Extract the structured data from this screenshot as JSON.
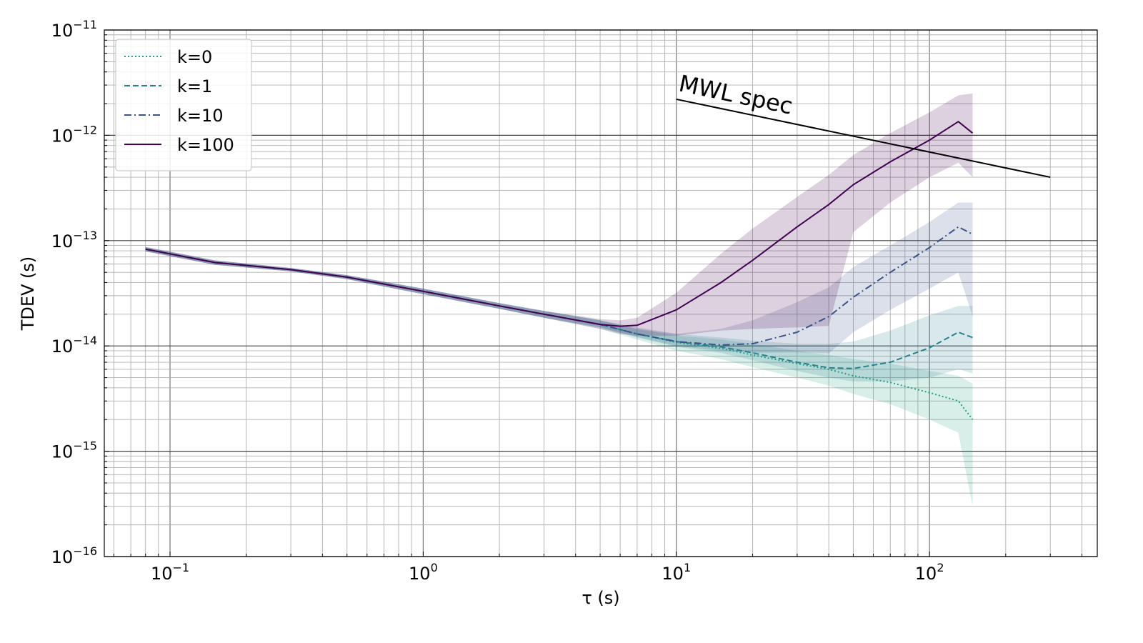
{
  "chart_data": {
    "type": "line",
    "title": "",
    "xlabel": "τ (s)",
    "ylabel": "TDEV (s)",
    "xscale": "log",
    "yscale": "log",
    "xlim": [
      0.055,
      460
    ],
    "ylim": [
      1e-16,
      1e-11
    ],
    "grid": "major and minor",
    "legend_position": "upper-left",
    "x_ticks": [
      {
        "value": 0.1,
        "base": "10",
        "exp": "−1"
      },
      {
        "value": 1,
        "base": "10",
        "exp": "0"
      },
      {
        "value": 10,
        "base": "10",
        "exp": "1"
      },
      {
        "value": 100,
        "base": "10",
        "exp": "2"
      }
    ],
    "y_ticks": [
      {
        "value": 1e-11,
        "base": "10",
        "exp": "−11"
      },
      {
        "value": 1e-12,
        "base": "10",
        "exp": "−12"
      },
      {
        "value": 1e-13,
        "base": "10",
        "exp": "−13"
      },
      {
        "value": 1e-14,
        "base": "10",
        "exp": "−14"
      },
      {
        "value": 1e-15,
        "base": "10",
        "exp": "−15"
      },
      {
        "value": 1e-16,
        "base": "10",
        "exp": "−16"
      }
    ],
    "series": [
      {
        "name": "k=0",
        "color": "#1fa187",
        "style": "dotted",
        "x": [
          0.08,
          0.15,
          0.3,
          0.5,
          1,
          2,
          3,
          5,
          7,
          10,
          15,
          20,
          30,
          40,
          50,
          70,
          100,
          130,
          148
        ],
        "y": [
          8.3e-14,
          6.2e-14,
          5.3e-14,
          4.5e-14,
          3.3e-14,
          2.4e-14,
          2e-14,
          1.6e-14,
          1.3e-14,
          1.08e-14,
          9.5e-15,
          8.2e-15,
          6.8e-15,
          6e-15,
          5.2e-15,
          4.5e-15,
          3.6e-15,
          3e-15,
          2e-15
        ],
        "band_low": [
          7.9e-14,
          5.9e-14,
          5.1e-14,
          4.3e-14,
          3.1e-14,
          2.25e-14,
          1.85e-14,
          1.45e-14,
          1.15e-14,
          9e-15,
          7.5e-15,
          6.3e-15,
          5e-15,
          4.2e-15,
          3.5e-15,
          2.8e-15,
          2e-15,
          1.5e-15,
          3e-16
        ],
        "band_high": [
          8.7e-14,
          6.5e-14,
          5.5e-14,
          4.7e-14,
          3.5e-14,
          2.55e-14,
          2.15e-14,
          1.75e-14,
          1.45e-14,
          1.25e-14,
          1.15e-14,
          1.05e-14,
          9e-15,
          8.2e-15,
          7.5e-15,
          6.8e-15,
          5.8e-15,
          5.2e-15,
          4.4e-15
        ]
      },
      {
        "name": "k=1",
        "color": "#26828e",
        "style": "dashed",
        "x": [
          0.08,
          0.15,
          0.3,
          0.5,
          1,
          2,
          3,
          5,
          7,
          10,
          15,
          20,
          30,
          40,
          50,
          70,
          100,
          130,
          148
        ],
        "y": [
          8.3e-14,
          6.2e-14,
          5.3e-14,
          4.5e-14,
          3.3e-14,
          2.4e-14,
          2e-14,
          1.6e-14,
          1.3e-14,
          1.1e-14,
          9.8e-15,
          8.6e-15,
          7e-15,
          6.2e-15,
          6.1e-15,
          7e-15,
          9.6e-15,
          1.35e-14,
          1.2e-14
        ],
        "band_low": [
          7.9e-14,
          5.9e-14,
          5.1e-14,
          4.3e-14,
          3.1e-14,
          2.25e-14,
          1.85e-14,
          1.5e-14,
          1.2e-14,
          9.8e-15,
          8.6e-15,
          7.3e-15,
          5.8e-15,
          5e-15,
          4.6e-15,
          4.6e-15,
          5e-15,
          6e-15,
          5.5e-15
        ],
        "band_high": [
          8.7e-14,
          6.5e-14,
          5.5e-14,
          4.7e-14,
          3.5e-14,
          2.55e-14,
          2.15e-14,
          1.75e-14,
          1.45e-14,
          1.3e-14,
          1.2e-14,
          1.12e-14,
          1.05e-14,
          1.05e-14,
          1.1e-14,
          1.4e-14,
          1.95e-14,
          2.4e-14,
          2.4e-14
        ]
      },
      {
        "name": "k=10",
        "color": "#3b528b",
        "style": "dashdot",
        "x": [
          0.08,
          0.15,
          0.3,
          0.5,
          1,
          2,
          3,
          5,
          7,
          10,
          15,
          20,
          30,
          40,
          50,
          70,
          100,
          130,
          148
        ],
        "y": [
          8.3e-14,
          6.2e-14,
          5.3e-14,
          4.5e-14,
          3.3e-14,
          2.4e-14,
          2e-14,
          1.6e-14,
          1.3e-14,
          1.1e-14,
          1.02e-14,
          1.05e-14,
          1.35e-14,
          1.9e-14,
          2.9e-14,
          5e-14,
          8.6e-14,
          1.35e-13,
          1.15e-13
        ],
        "band_low": [
          7.9e-14,
          5.9e-14,
          5.1e-14,
          4.3e-14,
          3.1e-14,
          2.25e-14,
          1.85e-14,
          1.5e-14,
          1.22e-14,
          1e-14,
          9e-15,
          8.6e-15,
          8.7e-15,
          8.5e-15,
          1.35e-14,
          2.2e-14,
          3.5e-14,
          5e-14,
          1.9e-14
        ],
        "band_high": [
          8.7e-14,
          6.5e-14,
          5.5e-14,
          4.7e-14,
          3.5e-14,
          2.55e-14,
          2.15e-14,
          1.75e-14,
          1.5e-14,
          1.3e-14,
          1.45e-14,
          1.75e-14,
          2.6e-14,
          3.6e-14,
          5.6e-14,
          9e-14,
          1.5e-13,
          2.3e-13,
          2.3e-13
        ]
      },
      {
        "name": "k=100",
        "color": "#440154",
        "style": "solid",
        "x": [
          0.08,
          0.15,
          0.3,
          0.5,
          1,
          2,
          3,
          5,
          6,
          7,
          10,
          15,
          20,
          30,
          40,
          50,
          70,
          100,
          130,
          148
        ],
        "y": [
          8.3e-14,
          6.2e-14,
          5.3e-14,
          4.5e-14,
          3.3e-14,
          2.4e-14,
          2e-14,
          1.6e-14,
          1.54e-14,
          1.57e-14,
          2.2e-14,
          4e-14,
          6.5e-14,
          1.35e-13,
          2.2e-13,
          3.4e-13,
          5.6e-13,
          9e-13,
          1.35e-12,
          1.05e-12
        ],
        "band_low": [
          7.9e-14,
          5.9e-14,
          5.1e-14,
          4.3e-14,
          3.1e-14,
          2.25e-14,
          1.85e-14,
          1.45e-14,
          1.3e-14,
          1.25e-14,
          1.25e-14,
          1.4e-14,
          1.45e-14,
          1.5e-14,
          1.55e-14,
          1.2e-13,
          2.3e-13,
          4e-13,
          5.5e-13,
          4e-13
        ],
        "band_high": [
          8.7e-14,
          6.5e-14,
          5.5e-14,
          4.7e-14,
          3.5e-14,
          2.55e-14,
          2.15e-14,
          1.8e-14,
          1.75e-14,
          1.85e-14,
          3.2e-14,
          7.5e-14,
          1.3e-13,
          2.6e-13,
          4.2e-13,
          6.5e-13,
          1.05e-12,
          1.65e-12,
          2.4e-12,
          2.5e-12
        ]
      }
    ],
    "reference_line": {
      "label": "MWL spec",
      "color": "#000000",
      "x": [
        10,
        300
      ],
      "y": [
        2.2e-12,
        4e-13
      ]
    }
  }
}
